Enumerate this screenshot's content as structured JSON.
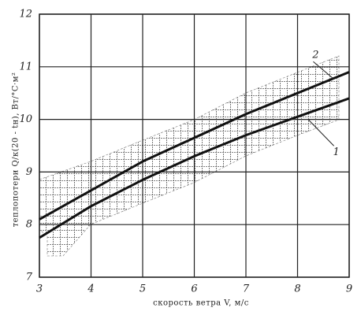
{
  "chart_data": {
    "type": "line",
    "xlabel": "скорость ветра V, м/с",
    "ylabel": "теплопотери Q/к(20 - tн), Вт/°С·м²",
    "x": [
      3,
      4,
      5,
      6,
      7,
      8,
      9
    ],
    "series": [
      {
        "name": "1",
        "color": "#111111",
        "values": [
          7.75,
          8.35,
          8.85,
          9.3,
          9.7,
          10.05,
          10.4
        ]
      },
      {
        "name": "2",
        "color": "#111111",
        "values": [
          8.1,
          8.65,
          9.2,
          9.65,
          10.1,
          10.5,
          10.9
        ]
      }
    ],
    "xlim": [
      3,
      9
    ],
    "xticks": [
      3,
      4,
      5,
      6,
      7,
      8,
      9
    ],
    "ylim": [
      7,
      12
    ],
    "yticks": [
      7,
      8,
      9,
      10,
      11,
      12
    ],
    "grid": true
  }
}
